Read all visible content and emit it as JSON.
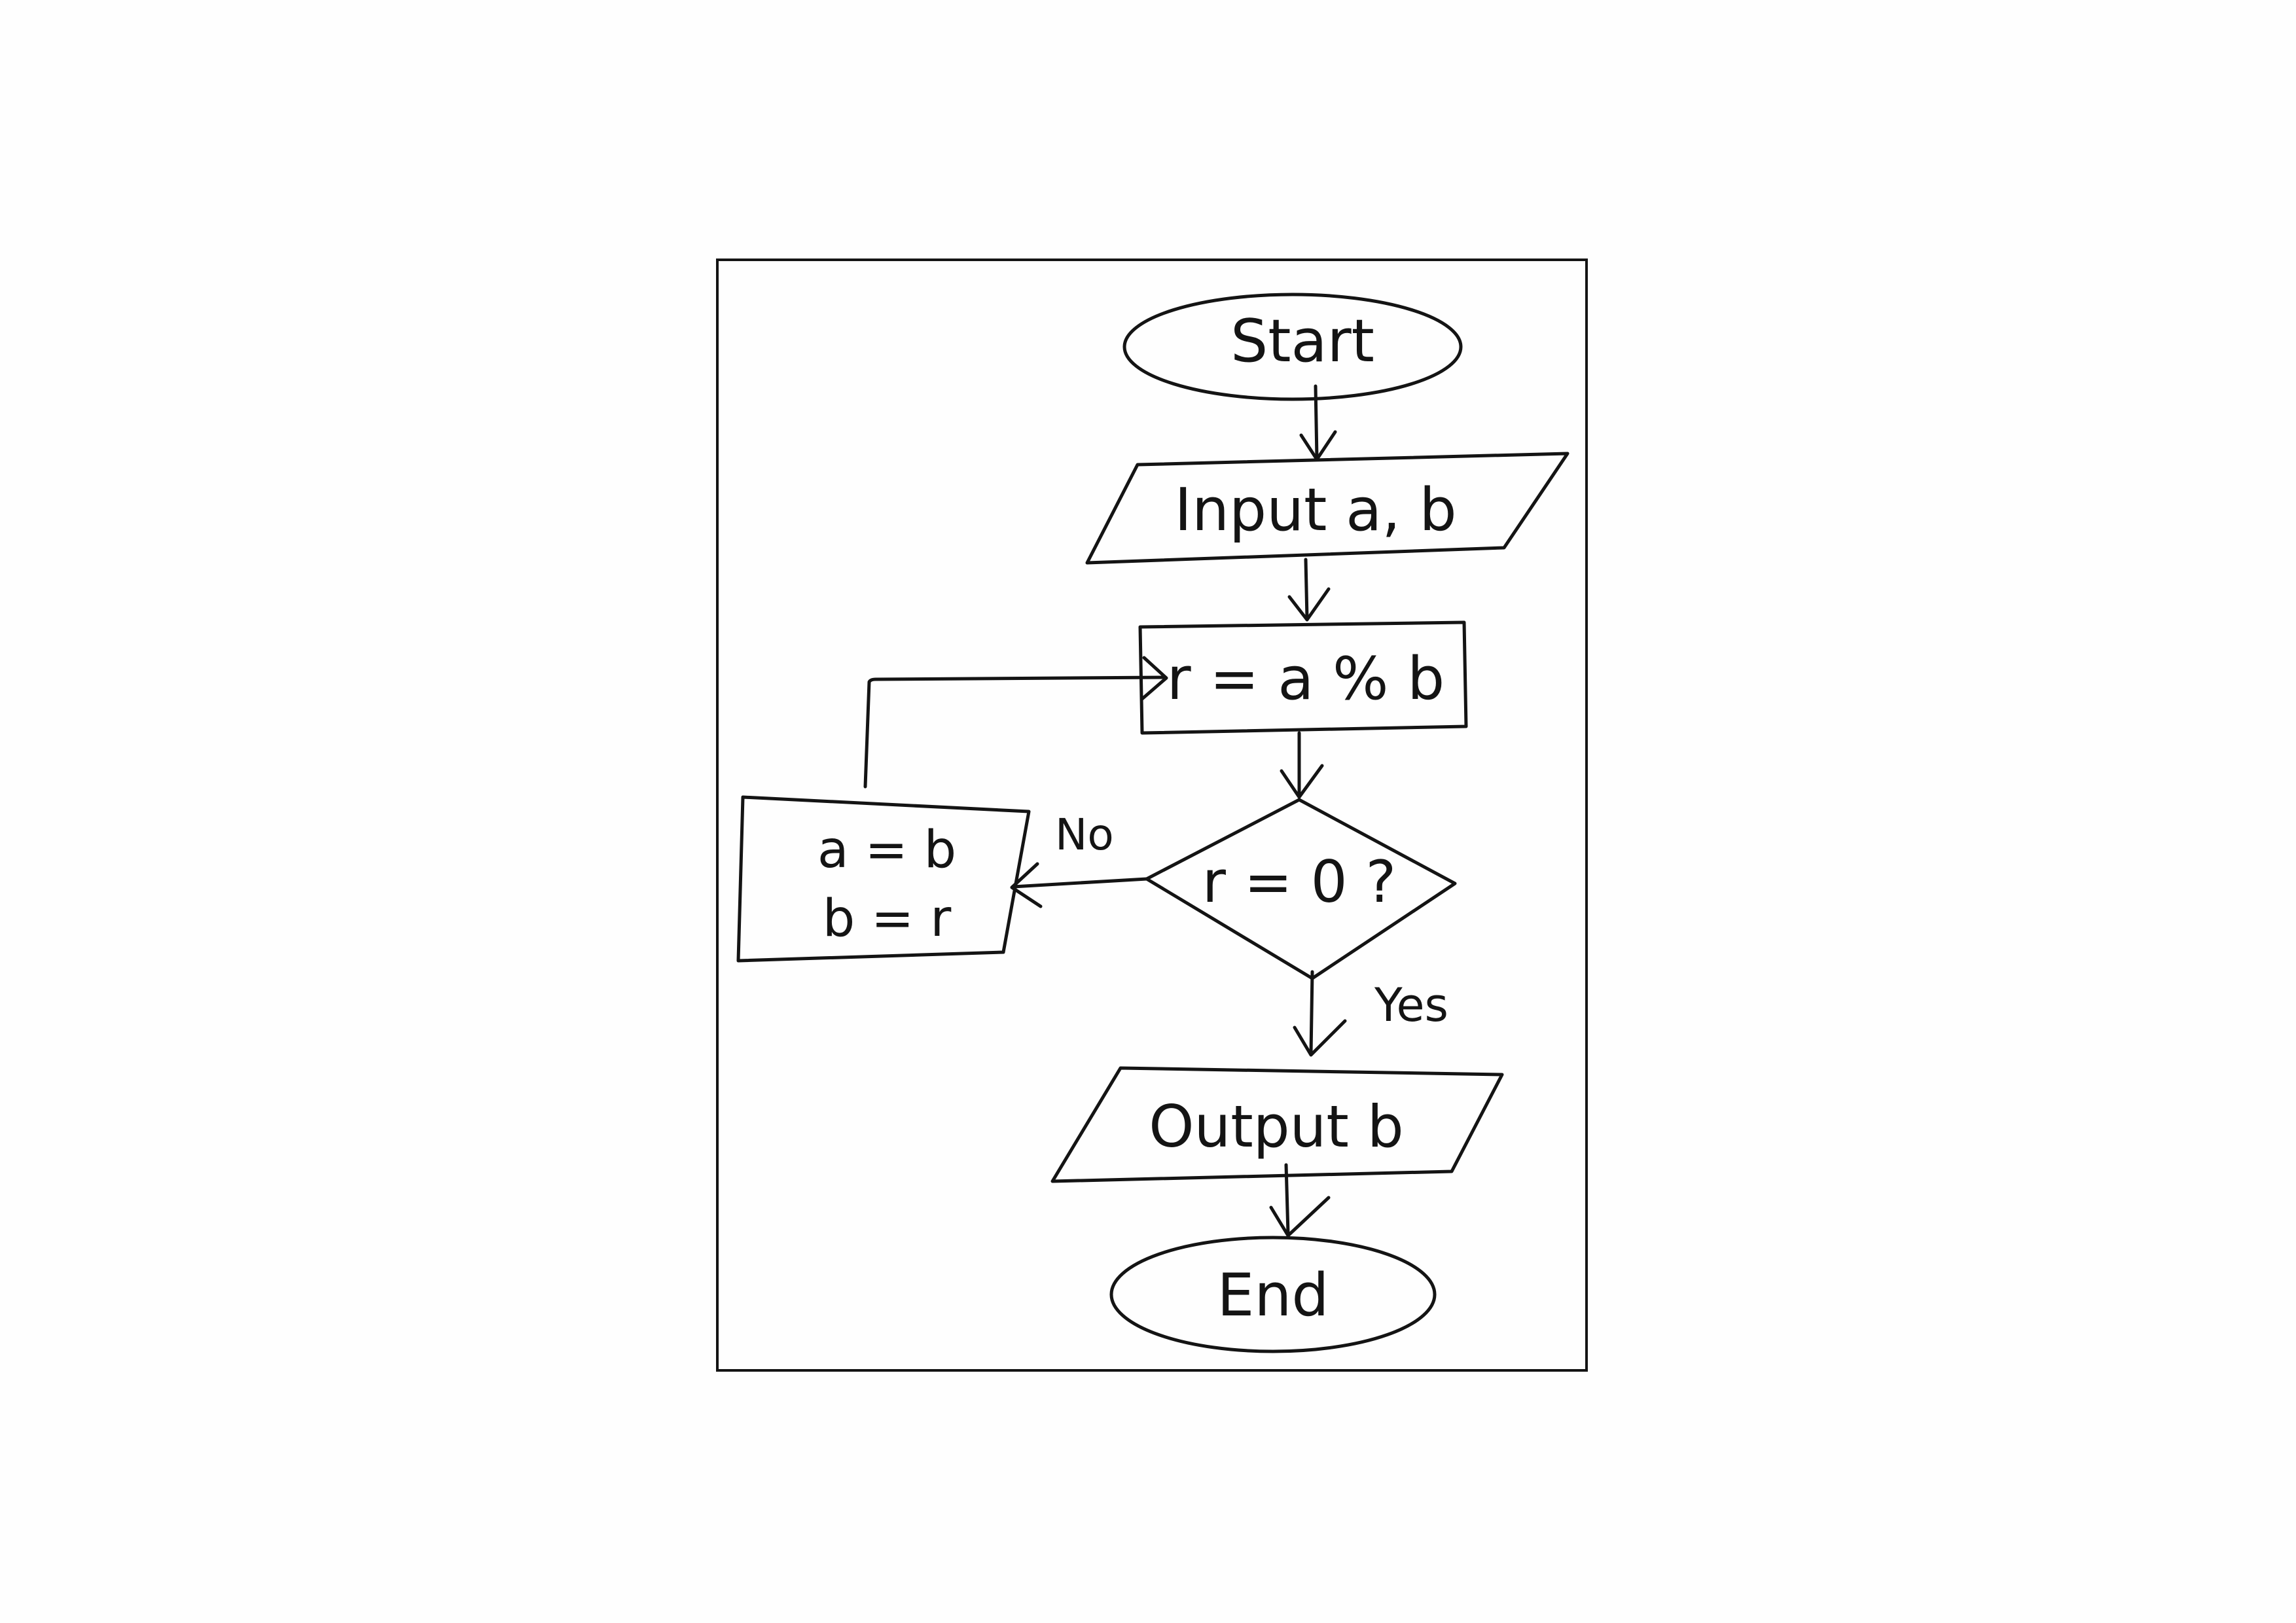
{
  "diagram": {
    "nodes": {
      "start": {
        "label": "Start",
        "shape": "ellipse"
      },
      "input": {
        "label": "Input a, b",
        "shape": "parallelogram"
      },
      "compute": {
        "label": "r = a % b",
        "shape": "rectangle"
      },
      "decision": {
        "label": "r = 0 ?",
        "shape": "diamond"
      },
      "swap": {
        "line1": "a = b",
        "line2": "b = r",
        "shape": "rectangle"
      },
      "output": {
        "label": "Output b",
        "shape": "parallelogram"
      },
      "end": {
        "label": "End",
        "shape": "ellipse"
      }
    },
    "edges": {
      "no_label": "No",
      "yes_label": "Yes"
    },
    "colors": {
      "ink": "#141414",
      "paper": "#fefefe"
    }
  }
}
